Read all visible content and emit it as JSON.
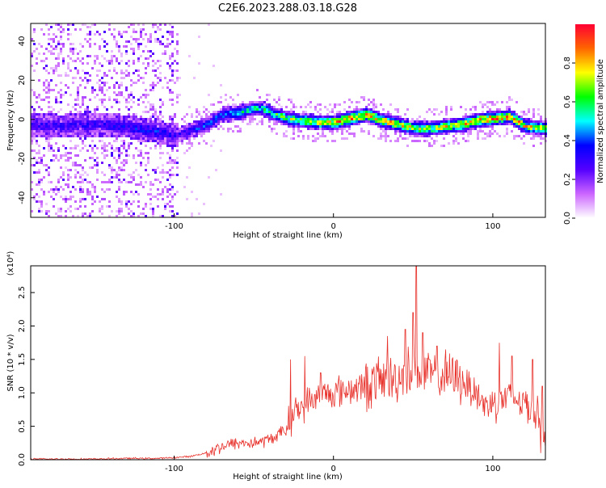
{
  "title": "C2E6.2023.288.03.18.G28",
  "colors": {
    "snr_line": "#e8322c",
    "axis": "#000000",
    "background": "#ffffff"
  },
  "chart_data": [
    {
      "type": "heatmap",
      "title": "C2E6.2023.288.03.18.G28",
      "xlabel": "Height of straight line (km)",
      "ylabel": "Frequency (Hz)",
      "xlim": [
        -190,
        133
      ],
      "ylim": [
        -50,
        49
      ],
      "xticks": [
        -100,
        0,
        100
      ],
      "yticks": [
        -40,
        -20,
        0,
        20,
        40
      ],
      "colorbar": {
        "label": "Normalized spectral amplitude",
        "range": [
          0,
          1
        ],
        "ticks": [
          "0.0",
          "0.2",
          "0.4",
          "0.6",
          "0.8"
        ],
        "colormap": [
          "#ffffff",
          "#cc66ff",
          "#5500ff",
          "#0000ff",
          "#00ffff",
          "#00ff00",
          "#ffff00",
          "#ff6600",
          "#ff0033"
        ]
      },
      "ridge": {
        "x": [
          -190,
          -170,
          -150,
          -130,
          -110,
          -100,
          -90,
          -80,
          -70,
          -60,
          -50,
          -45,
          -40,
          -30,
          -20,
          -10,
          0,
          10,
          20,
          30,
          40,
          50,
          60,
          70,
          80,
          90,
          100,
          110,
          120,
          133
        ],
        "freq": [
          -2,
          -3,
          -2,
          -3,
          -6,
          -8,
          -5,
          -2,
          3,
          4,
          6,
          6,
          4,
          1,
          0,
          -1,
          -1,
          1,
          3,
          0,
          -2,
          -4,
          -4,
          -3,
          -2,
          0,
          1,
          2,
          -3,
          -4
        ],
        "amplitude": [
          0.3,
          0.3,
          0.3,
          0.35,
          0.35,
          0.3,
          0.35,
          0.4,
          0.45,
          0.5,
          0.55,
          0.55,
          0.6,
          0.65,
          0.7,
          0.75,
          0.8,
          0.85,
          0.85,
          0.8,
          0.75,
          0.7,
          0.7,
          0.75,
          0.8,
          0.85,
          0.9,
          0.85,
          0.75,
          0.7
        ]
      },
      "noise_region_x": [
        -190,
        -98
      ]
    },
    {
      "type": "line",
      "xlabel": "Height of straight line (km)",
      "ylabel": "SNR (10 * v/v)",
      "yscale_note": "(x10⁴)",
      "xlim": [
        -190,
        133
      ],
      "ylim": [
        0,
        2.9
      ],
      "xticks": [
        -100,
        0,
        100
      ],
      "yticks": [
        0.0,
        0.5,
        1.0,
        1.5,
        2.0,
        2.5
      ],
      "series": [
        {
          "x": [
            -190,
            -170,
            -150,
            -130,
            -110,
            -100,
            -90,
            -80,
            -70,
            -60,
            -50,
            -40,
            -30,
            -25,
            -20,
            -10,
            0,
            10,
            20,
            30,
            40,
            45,
            50,
            55,
            60,
            70,
            80,
            90,
            95,
            100,
            110,
            120,
            130,
            133
          ],
          "values": [
            0.01,
            0.01,
            0.01,
            0.02,
            0.02,
            0.03,
            0.05,
            0.1,
            0.2,
            0.25,
            0.25,
            0.3,
            0.45,
            0.7,
            0.8,
            0.95,
            1.0,
            1.05,
            1.1,
            1.2,
            1.2,
            1.3,
            1.35,
            1.3,
            1.3,
            1.25,
            1.2,
            1.0,
            0.8,
            0.85,
            0.95,
            0.85,
            0.6,
            0.3
          ]
        }
      ],
      "peaks": [
        {
          "x": 52,
          "y": 2.9
        },
        {
          "x": 50,
          "y": 2.2
        },
        {
          "x": 34,
          "y": 1.85
        },
        {
          "x": 45,
          "y": 1.95
        },
        {
          "x": 56,
          "y": 1.9
        },
        {
          "x": 60,
          "y": 1.5
        },
        {
          "x": 65,
          "y": 1.7
        },
        {
          "x": 70,
          "y": 1.5
        },
        {
          "x": -18,
          "y": 1.55
        },
        {
          "x": -27,
          "y": 1.5
        },
        {
          "x": -8,
          "y": 1.3
        },
        {
          "x": 104,
          "y": 1.75
        },
        {
          "x": 112,
          "y": 1.55
        },
        {
          "x": 125,
          "y": 1.5
        },
        {
          "x": 131,
          "y": 1.1
        },
        {
          "x": 130,
          "y": 0.1
        }
      ]
    }
  ]
}
